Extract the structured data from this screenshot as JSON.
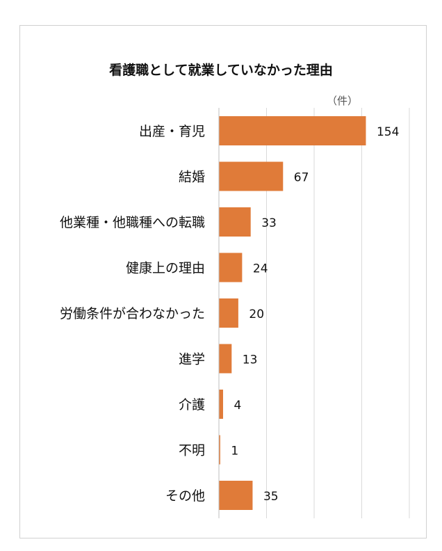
{
  "chart_data": {
    "type": "bar",
    "orientation": "horizontal",
    "title": "看護職として就業していなかった理由",
    "unit_label": "（件）",
    "categories": [
      "出産・育児",
      "結婚",
      "他業種・他職種への転職",
      "健康上の理由",
      "労働条件が合わなかった",
      "進学",
      "介護",
      "不明",
      "その他"
    ],
    "values": [
      154,
      67,
      33,
      24,
      20,
      13,
      4,
      1,
      35
    ],
    "xlim": [
      0,
      200
    ],
    "grid": true,
    "bar_color": "#E07B39"
  }
}
